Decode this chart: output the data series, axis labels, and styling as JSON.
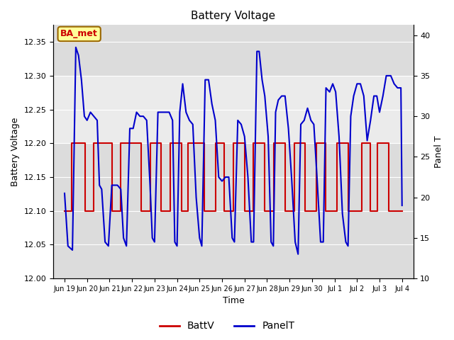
{
  "title": "Battery Voltage",
  "xlabel": "Time",
  "ylabel_left": "Battery Voltage",
  "ylabel_right": "Panel T",
  "ylim_left": [
    12.0,
    12.375
  ],
  "ylim_right": [
    10,
    41.25
  ],
  "yticks_left": [
    12.0,
    12.05,
    12.1,
    12.15,
    12.2,
    12.25,
    12.3,
    12.35
  ],
  "yticks_right": [
    10,
    15,
    20,
    25,
    30,
    35,
    40
  ],
  "shaded_band": [
    12.2,
    12.3
  ],
  "annotation_text": "BA_met",
  "annotation_color": "#cc0000",
  "annotation_bg": "#ffff99",
  "background_color": "#ffffff",
  "plot_bg_color": "#dcdcdc",
  "shaded_color": "#ebebeb",
  "grid_color": "#ffffff",
  "batt_color": "#cc0000",
  "panel_color": "#0000cc",
  "legend_batt": "BattV",
  "legend_panel": "PanelT",
  "batt_data": [
    [
      0.0,
      12.1
    ],
    [
      0.3,
      12.1
    ],
    [
      0.3,
      12.2
    ],
    [
      0.9,
      12.2
    ],
    [
      0.9,
      12.1
    ],
    [
      1.3,
      12.1
    ],
    [
      1.3,
      12.2
    ],
    [
      2.1,
      12.2
    ],
    [
      2.1,
      12.1
    ],
    [
      2.5,
      12.1
    ],
    [
      2.5,
      12.2
    ],
    [
      3.4,
      12.2
    ],
    [
      3.4,
      12.1
    ],
    [
      3.8,
      12.1
    ],
    [
      3.8,
      12.2
    ],
    [
      4.3,
      12.2
    ],
    [
      4.3,
      12.1
    ],
    [
      4.7,
      12.1
    ],
    [
      4.7,
      12.2
    ],
    [
      5.2,
      12.2
    ],
    [
      5.2,
      12.1
    ],
    [
      5.5,
      12.1
    ],
    [
      5.5,
      12.2
    ],
    [
      6.2,
      12.2
    ],
    [
      6.2,
      12.1
    ],
    [
      6.7,
      12.1
    ],
    [
      6.7,
      12.2
    ],
    [
      7.1,
      12.2
    ],
    [
      7.1,
      12.1
    ],
    [
      7.5,
      12.1
    ],
    [
      7.5,
      12.2
    ],
    [
      8.0,
      12.2
    ],
    [
      8.0,
      12.1
    ],
    [
      8.4,
      12.1
    ],
    [
      8.4,
      12.2
    ],
    [
      8.9,
      12.2
    ],
    [
      8.9,
      12.1
    ],
    [
      9.3,
      12.1
    ],
    [
      9.3,
      12.2
    ],
    [
      9.8,
      12.2
    ],
    [
      9.8,
      12.1
    ],
    [
      10.2,
      12.1
    ],
    [
      10.2,
      12.2
    ],
    [
      10.7,
      12.2
    ],
    [
      10.7,
      12.1
    ],
    [
      11.2,
      12.1
    ],
    [
      11.2,
      12.2
    ],
    [
      11.6,
      12.2
    ],
    [
      11.6,
      12.1
    ],
    [
      12.1,
      12.1
    ],
    [
      12.1,
      12.2
    ],
    [
      12.6,
      12.2
    ],
    [
      12.6,
      12.1
    ],
    [
      13.2,
      12.1
    ],
    [
      13.2,
      12.2
    ],
    [
      13.6,
      12.2
    ],
    [
      13.6,
      12.1
    ],
    [
      13.9,
      12.1
    ],
    [
      13.9,
      12.2
    ],
    [
      14.4,
      12.2
    ],
    [
      14.4,
      12.1
    ],
    [
      15.0,
      12.1
    ]
  ],
  "panel_data": [
    [
      0.0,
      20.5
    ],
    [
      0.15,
      14.0
    ],
    [
      0.35,
      13.5
    ],
    [
      0.5,
      38.5
    ],
    [
      0.62,
      37.5
    ],
    [
      0.75,
      34.5
    ],
    [
      0.88,
      30.0
    ],
    [
      1.0,
      29.5
    ],
    [
      1.15,
      30.5
    ],
    [
      1.3,
      30.0
    ],
    [
      1.45,
      29.5
    ],
    [
      1.55,
      21.5
    ],
    [
      1.65,
      21.0
    ],
    [
      1.8,
      14.5
    ],
    [
      1.95,
      14.0
    ],
    [
      2.1,
      21.5
    ],
    [
      2.2,
      21.5
    ],
    [
      2.35,
      21.5
    ],
    [
      2.5,
      21.0
    ],
    [
      2.62,
      15.0
    ],
    [
      2.75,
      14.0
    ],
    [
      2.9,
      28.5
    ],
    [
      3.05,
      28.5
    ],
    [
      3.2,
      30.5
    ],
    [
      3.35,
      30.0
    ],
    [
      3.5,
      30.0
    ],
    [
      3.65,
      29.5
    ],
    [
      3.8,
      21.5
    ],
    [
      3.9,
      15.0
    ],
    [
      4.0,
      14.5
    ],
    [
      4.15,
      30.5
    ],
    [
      4.3,
      30.5
    ],
    [
      4.5,
      30.5
    ],
    [
      4.65,
      30.5
    ],
    [
      4.8,
      29.5
    ],
    [
      4.9,
      14.5
    ],
    [
      5.0,
      14.0
    ],
    [
      5.12,
      30.5
    ],
    [
      5.25,
      34.0
    ],
    [
      5.4,
      30.5
    ],
    [
      5.55,
      29.5
    ],
    [
      5.7,
      29.0
    ],
    [
      5.85,
      20.0
    ],
    [
      6.0,
      15.0
    ],
    [
      6.1,
      14.0
    ],
    [
      6.25,
      34.5
    ],
    [
      6.4,
      34.5
    ],
    [
      6.55,
      31.5
    ],
    [
      6.7,
      29.5
    ],
    [
      6.85,
      22.5
    ],
    [
      7.0,
      22.0
    ],
    [
      7.15,
      22.5
    ],
    [
      7.3,
      22.5
    ],
    [
      7.45,
      15.0
    ],
    [
      7.55,
      14.5
    ],
    [
      7.7,
      29.5
    ],
    [
      7.85,
      29.0
    ],
    [
      8.0,
      27.5
    ],
    [
      8.15,
      22.5
    ],
    [
      8.3,
      14.5
    ],
    [
      8.4,
      14.5
    ],
    [
      8.55,
      38.0
    ],
    [
      8.65,
      38.0
    ],
    [
      8.78,
      34.5
    ],
    [
      8.9,
      32.5
    ],
    [
      9.05,
      27.5
    ],
    [
      9.18,
      14.5
    ],
    [
      9.28,
      14.0
    ],
    [
      9.38,
      30.5
    ],
    [
      9.5,
      32.0
    ],
    [
      9.65,
      32.5
    ],
    [
      9.8,
      32.5
    ],
    [
      9.95,
      28.5
    ],
    [
      10.1,
      22.0
    ],
    [
      10.25,
      14.5
    ],
    [
      10.38,
      13.0
    ],
    [
      10.5,
      29.0
    ],
    [
      10.65,
      29.5
    ],
    [
      10.8,
      31.0
    ],
    [
      10.95,
      29.5
    ],
    [
      11.08,
      29.0
    ],
    [
      11.22,
      22.5
    ],
    [
      11.38,
      14.5
    ],
    [
      11.5,
      14.5
    ],
    [
      11.62,
      33.5
    ],
    [
      11.78,
      33.0
    ],
    [
      11.92,
      34.0
    ],
    [
      12.05,
      33.0
    ],
    [
      12.2,
      27.5
    ],
    [
      12.35,
      18.0
    ],
    [
      12.5,
      14.5
    ],
    [
      12.6,
      14.0
    ],
    [
      12.72,
      30.0
    ],
    [
      12.85,
      32.5
    ],
    [
      13.0,
      34.0
    ],
    [
      13.15,
      34.0
    ],
    [
      13.3,
      32.5
    ],
    [
      13.45,
      27.0
    ],
    [
      13.6,
      29.5
    ],
    [
      13.75,
      32.5
    ],
    [
      13.88,
      32.5
    ],
    [
      14.0,
      30.5
    ],
    [
      14.15,
      32.5
    ],
    [
      14.3,
      35.0
    ],
    [
      14.5,
      35.0
    ],
    [
      14.65,
      34.0
    ],
    [
      14.8,
      33.5
    ],
    [
      14.95,
      33.5
    ],
    [
      15.0,
      19.0
    ]
  ],
  "xtick_labels": [
    "Jun 19",
    "Jun 20",
    "Jun 21",
    "Jun 22",
    "Jun 23",
    "Jun 24",
    "Jun 25",
    "Jun 26",
    "Jun 27",
    "Jun 28",
    "Jun 29",
    "Jun 30",
    "Jul 1",
    "Jul 2",
    "Jul 3",
    "Jul 4"
  ],
  "xtick_positions": [
    0,
    1,
    2,
    3,
    4,
    5,
    6,
    7,
    8,
    9,
    10,
    11,
    12,
    13,
    14,
    15
  ]
}
